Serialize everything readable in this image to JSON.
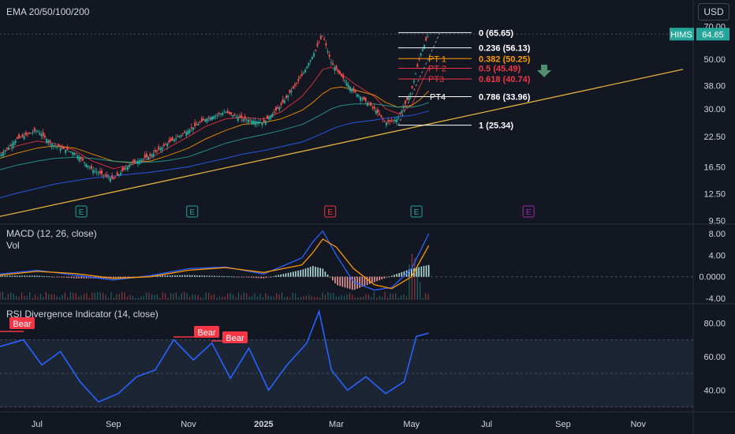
{
  "header": {
    "indicator_title": "EMA 20/50/100/200",
    "currency_button": "USD"
  },
  "ticker": {
    "symbol": "HIMS",
    "price": "64.65",
    "color": "#26a69a"
  },
  "panes": {
    "macd_title": "MACD (12, 26, close)",
    "vol_title": "Vol",
    "rsi_title": "RSI Divergence Indicator (14, close)"
  },
  "earnings_markers": [
    {
      "label": "E",
      "date": "2024-08-06",
      "color": "#26a69a"
    },
    {
      "label": "E",
      "date": "2024-11-04",
      "color": "#26a69a"
    },
    {
      "label": "E",
      "date": "2025-02-24",
      "color": "#f23645"
    },
    {
      "label": "E",
      "date": "2025-05-05",
      "color": "#26a69a"
    },
    {
      "label": "E",
      "date": "2025-08-04",
      "color": "#9c27b0"
    }
  ],
  "fib_levels": [
    {
      "label": "0 (65.65)",
      "value": 65.65,
      "color": "#ffffff"
    },
    {
      "label": "0.236 (56.13)",
      "value": 56.13,
      "color": "#ffffff"
    },
    {
      "label": "0.382 (50.25)",
      "value": 50.25,
      "color": "#ff9800"
    },
    {
      "label": "0.5 (45.49)",
      "value": 45.49,
      "color": "#f23645"
    },
    {
      "label": "0.618 (40.74)",
      "value": 40.74,
      "color": "#f23645"
    },
    {
      "label": "0.786 (33.96)",
      "value": 33.96,
      "color": "#ffffff"
    },
    {
      "label": "1 (25.34)",
      "value": 25.34,
      "color": "#ffffff"
    }
  ],
  "targets": [
    {
      "label": "PT 1",
      "value": 50.25,
      "color": "#ff9800"
    },
    {
      "label": "PT 2",
      "value": 45.49,
      "color": "#f23645"
    },
    {
      "label": "PT3",
      "value": 40.74,
      "color": "#f23645"
    },
    {
      "label": "PT4",
      "value": 33.96,
      "color": "#ffffff"
    }
  ],
  "bear_labels": [
    "Bear",
    "Bear",
    "Bear"
  ],
  "chart_data": [
    {
      "type": "line",
      "title": "EMA 20/50/100/200",
      "scale": "log",
      "x_tick_labels": [
        "Jul",
        "Sep",
        "Nov",
        "2025",
        "Mar",
        "May",
        "Jul",
        "Sep",
        "Nov"
      ],
      "y_tick_labels": [
        "70.00",
        "50.00",
        "38.00",
        "30.00",
        "22.50",
        "16.50",
        "12.50",
        "9.50"
      ],
      "y_ticks": [
        70,
        50,
        38,
        30,
        22.5,
        16.5,
        12.5,
        9.5
      ],
      "ylim": [
        9.3,
        72
      ],
      "x": [
        "2024-06-01",
        "2024-06-15",
        "2024-07-01",
        "2024-07-15",
        "2024-08-01",
        "2024-08-15",
        "2024-09-01",
        "2024-09-15",
        "2024-10-01",
        "2024-10-15",
        "2024-11-01",
        "2024-11-15",
        "2024-12-01",
        "2024-12-15",
        "2025-01-01",
        "2025-01-15",
        "2025-02-01",
        "2025-02-10",
        "2025-02-18",
        "2025-02-25",
        "2025-03-05",
        "2025-03-15",
        "2025-04-01",
        "2025-04-10",
        "2025-04-20",
        "2025-05-01",
        "2025-05-08",
        "2025-05-15"
      ],
      "series": [
        {
          "name": "HIMS",
          "color": "#26a69a",
          "values": [
            18.5,
            22,
            24,
            20.5,
            19,
            16,
            14.5,
            17,
            18.5,
            21,
            24,
            27,
            29,
            27,
            26,
            31,
            42,
            52,
            64,
            48,
            42,
            36,
            30,
            26,
            27,
            36,
            52,
            64.65
          ]
        },
        {
          "name": "EMA 20",
          "color": "#f23645",
          "values": [
            19,
            20.5,
            21.5,
            21,
            19.5,
            17.5,
            16.2,
            16.8,
            18,
            20,
            22.5,
            25,
            27,
            27.5,
            27,
            29,
            34,
            39,
            45,
            46,
            43,
            39,
            34,
            30,
            28.5,
            31,
            38,
            46
          ]
        },
        {
          "name": "EMA 50",
          "color": "#ff9800",
          "values": [
            18,
            19,
            20,
            20.5,
            20,
            18.8,
            17.5,
            17.2,
            17.5,
            18.5,
            20,
            22,
            24,
            25.5,
            26,
            27,
            29.5,
            32,
            35,
            37,
            37.5,
            36.5,
            34.5,
            32,
            30.5,
            31,
            33,
            36
          ]
        },
        {
          "name": "EMA 100",
          "color": "#26a69a",
          "values": [
            16,
            16.8,
            17.5,
            18,
            18.2,
            18,
            17.5,
            17.3,
            17.3,
            17.6,
            18.3,
            19.5,
            21,
            22,
            23,
            24,
            25.5,
            27,
            28.5,
            30,
            31,
            31.5,
            31.5,
            31,
            30.5,
            30.5,
            31,
            32
          ]
        },
        {
          "name": "EMA 200",
          "color": "#2962ff",
          "values": [
            12,
            12.6,
            13.2,
            13.8,
            14.3,
            14.7,
            15,
            15.3,
            15.6,
            16,
            16.5,
            17.2,
            18,
            18.8,
            19.5,
            20.3,
            21.3,
            22.3,
            23.3,
            24.3,
            25.2,
            26,
            26.7,
            27.2,
            27.6,
            28,
            28.6,
            29.3
          ]
        }
      ]
    },
    {
      "type": "line",
      "title": "MACD (12, 26, close)",
      "y_tick_labels": [
        "8.00",
        "4.00",
        "0.0000",
        "-4.00"
      ],
      "y_ticks": [
        8,
        4,
        0,
        -4
      ],
      "ylim": [
        -4.3,
        9.5
      ],
      "x": [
        "2024-06-01",
        "2024-07-01",
        "2024-08-01",
        "2024-09-01",
        "2024-10-01",
        "2024-11-01",
        "2024-12-01",
        "2025-01-01",
        "2025-02-01",
        "2025-02-10",
        "2025-02-18",
        "2025-03-01",
        "2025-03-15",
        "2025-04-01",
        "2025-04-15",
        "2025-05-01",
        "2025-05-15"
      ],
      "series": [
        {
          "name": "MACD",
          "color": "#2962ff",
          "values": [
            0.5,
            1.2,
            0.3,
            -0.6,
            0.2,
            1.5,
            1.8,
            0.5,
            3.5,
            6.5,
            8.5,
            4,
            -1,
            -2.5,
            -2,
            1.5,
            8
          ]
        },
        {
          "name": "Signal",
          "color": "#ff9800",
          "values": [
            0.3,
            1,
            0.6,
            -0.3,
            0,
            1.2,
            1.7,
            0.8,
            2.2,
            4.5,
            7,
            5.5,
            1.5,
            -1.5,
            -2.2,
            0,
            5.8
          ]
        }
      ]
    },
    {
      "type": "line",
      "title": "RSI Divergence Indicator (14, close)",
      "y_tick_labels": [
        "80.00",
        "60.00",
        "40.00"
      ],
      "y_ticks": [
        80,
        60,
        40
      ],
      "ylim": [
        28,
        90
      ],
      "x": [
        "2024-06-01",
        "2024-06-20",
        "2024-07-05",
        "2024-07-20",
        "2024-08-05",
        "2024-08-20",
        "2024-09-05",
        "2024-09-20",
        "2024-10-05",
        "2024-10-20",
        "2024-11-05",
        "2024-11-20",
        "2024-12-05",
        "2024-12-20",
        "2025-01-05",
        "2025-01-20",
        "2025-02-05",
        "2025-02-15",
        "2025-02-25",
        "2025-03-10",
        "2025-03-25",
        "2025-04-10",
        "2025-04-25",
        "2025-05-05",
        "2025-05-15"
      ],
      "series": [
        {
          "name": "RSI",
          "color": "#2962ff",
          "values": [
            66,
            70,
            55,
            63,
            45,
            33,
            38,
            48,
            52,
            70,
            58,
            68,
            47,
            65,
            40,
            55,
            68,
            87,
            52,
            40,
            48,
            38,
            45,
            72,
            74
          ]
        }
      ]
    }
  ]
}
